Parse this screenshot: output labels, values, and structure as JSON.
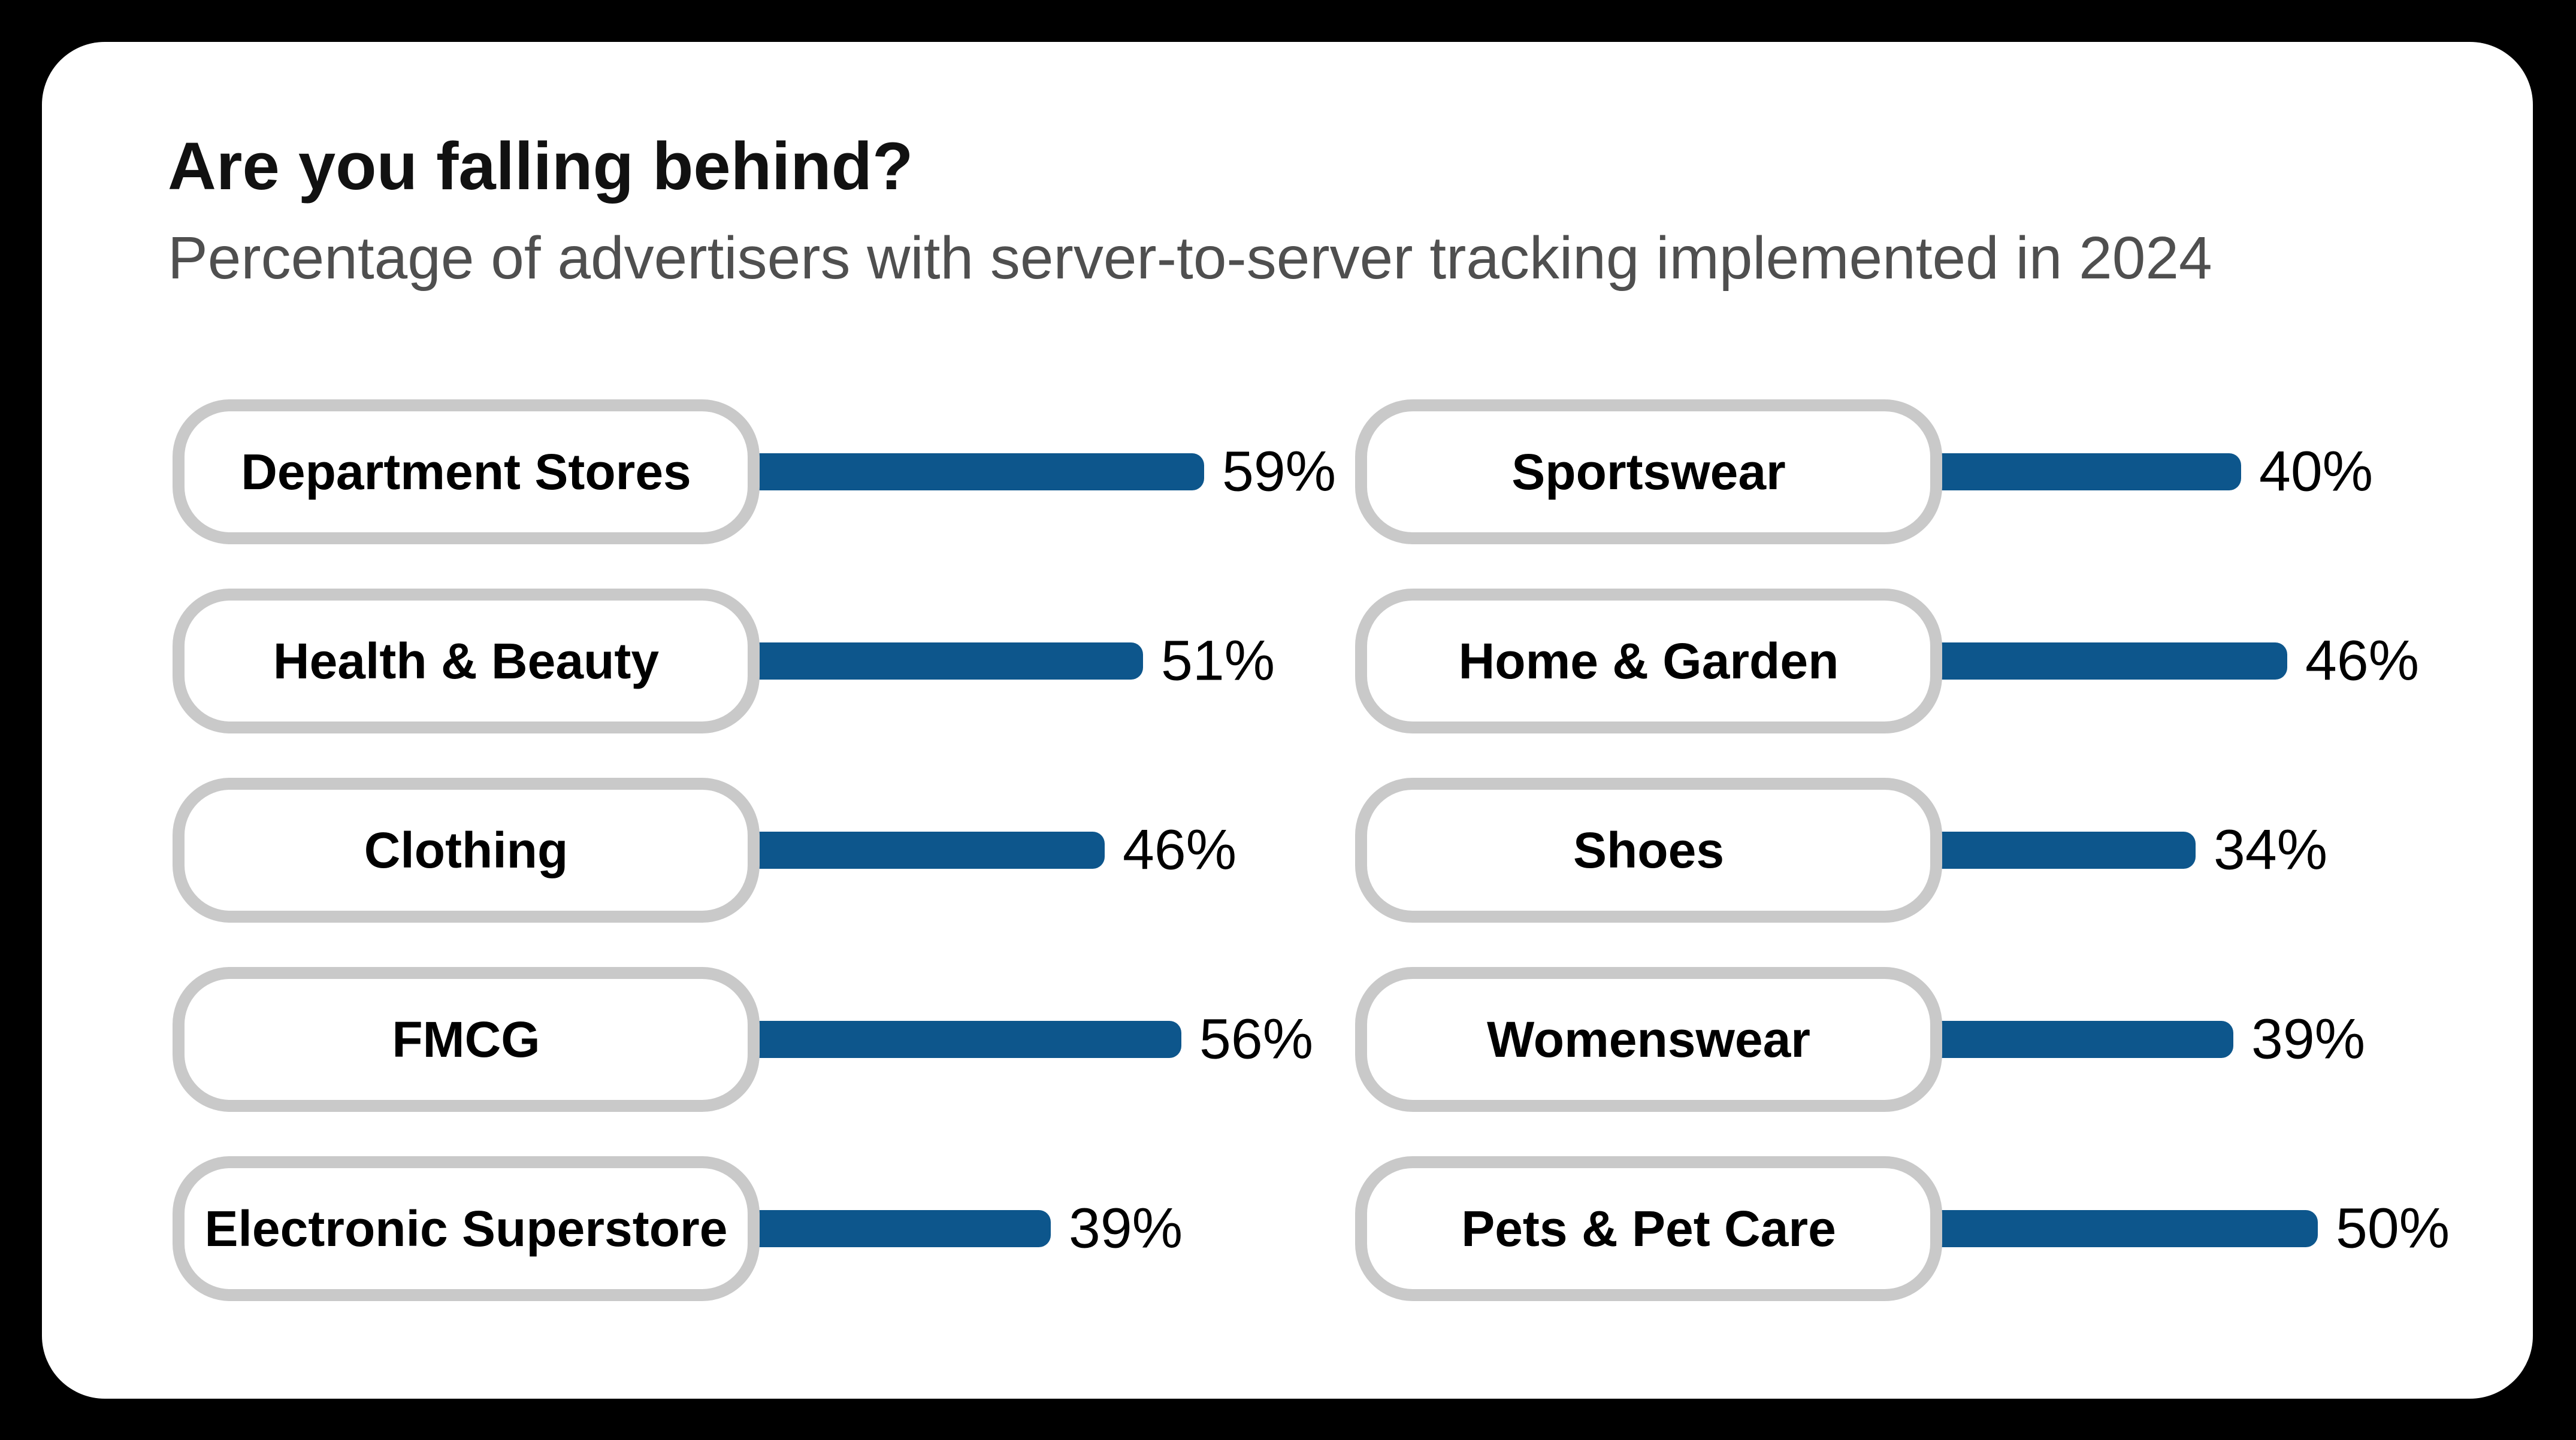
{
  "page": {
    "background_color": "#000000",
    "card_color": "#ffffff"
  },
  "chart_data": {
    "type": "bar",
    "orientation": "horizontal",
    "title": "Are you falling behind?",
    "subtitle": "Percentage of advertisers with server-to-server tracking implemented in 2024",
    "unit": "%",
    "value_range": [
      0,
      100
    ],
    "bar_color": "#0d568c",
    "pill_border_color": "#c9c9c9",
    "grid": false,
    "legend": false,
    "columns": [
      {
        "items": [
          {
            "label": "Department Stores",
            "value": 59,
            "value_label": "59%"
          },
          {
            "label": "Health & Beauty",
            "value": 51,
            "value_label": "51%"
          },
          {
            "label": "Clothing",
            "value": 46,
            "value_label": "46%"
          },
          {
            "label": "FMCG",
            "value": 56,
            "value_label": "56%"
          },
          {
            "label": "Electronic Superstore",
            "value": 39,
            "value_label": "39%"
          }
        ]
      },
      {
        "items": [
          {
            "label": "Sportswear",
            "value": 40,
            "value_label": "40%"
          },
          {
            "label": "Home & Garden",
            "value": 46,
            "value_label": "46%"
          },
          {
            "label": "Shoes",
            "value": 34,
            "value_label": "34%"
          },
          {
            "label": "Womenswear",
            "value": 39,
            "value_label": "39%"
          },
          {
            "label": "Pets & Pet Care",
            "value": 50,
            "value_label": "50%"
          }
        ]
      }
    ]
  }
}
